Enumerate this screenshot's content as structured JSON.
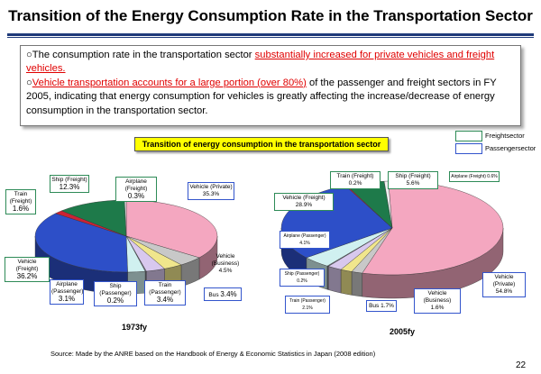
{
  "title": "Transition of the Energy Consumption Rate in the Transportation Sector",
  "bullets": [
    {
      "prefix": "The consumption rate in the transportation sector ",
      "emph": "substantially increased for private vehicles and freight vehicles.",
      "suffix": ""
    },
    {
      "prefix": "",
      "emph": "Vehicle transportation accounts for a large portion (over 80%)",
      "suffix": " of the passenger and freight sectors in FY 2005, indicating that energy consumption for vehicles is greatly affecting the increase/decrease of energy consumption in the transportation sector."
    }
  ],
  "bullet_symbol": "○",
  "chart_subtitle": "Transition of energy consumption in the transportation sector",
  "legend": {
    "freight": "Freightsector",
    "passenger": "Passengersector",
    "freight_color": "#2e8b57",
    "passenger_color": "#3355cc"
  },
  "chart_data": [
    {
      "type": "pie",
      "title": "1973fy",
      "slices": [
        {
          "label": "Vehicle (Private)",
          "value": 35.3,
          "sector": "passenger",
          "color": "#f4a7c0"
        },
        {
          "label": "Vehicle (Business)",
          "value": 4.5,
          "sector": "passenger",
          "color": "#c8c8c8"
        },
        {
          "label": "Bus",
          "value": 3.4,
          "sector": "passenger",
          "color": "#f0e68c"
        },
        {
          "label": "Train (Passenger)",
          "value": 3.4,
          "sector": "passenger",
          "color": "#d8c8ee"
        },
        {
          "label": "Ship (Passenger)",
          "value": 0.2,
          "sector": "passenger",
          "color": "#7a7a8a"
        },
        {
          "label": "Airplane (Passenger)",
          "value": 3.1,
          "sector": "passenger",
          "color": "#d0f0f0"
        },
        {
          "label": "Vehicle (Freight)",
          "value": 36.2,
          "sector": "freight",
          "color": "#2d4fc8"
        },
        {
          "label": "Train (Freight)",
          "value": 1.6,
          "sector": "freight",
          "color": "#cc2233"
        },
        {
          "label": "Ship (Freight)",
          "value": 12.3,
          "sector": "freight",
          "color": "#1e7a4a"
        },
        {
          "label": "Airplane (Freight)",
          "value": 0.3,
          "sector": "freight",
          "color": "#eeeeee"
        }
      ],
      "label_text": {
        "ship_freight": "Ship (Freight)",
        "ship_freight_v": "12.3%",
        "airplane_freight": "Airplane (Freight)",
        "airplane_freight_v": "0.3%",
        "vehicle_private": "Vehicle (Private)",
        "vehicle_private_v": "35.3%",
        "train_freight": "Train (Freight)",
        "train_freight_v": "1.6%",
        "vehicle_freight": "Vehicle (Freight)",
        "vehicle_freight_v": "36.2%",
        "airplane_passenger": "Airplane (Passenger)",
        "airplane_passenger_v": "3.1%",
        "ship_passenger": "Ship (Passenger)",
        "ship_passenger_v": "0.2%",
        "train_passenger": "Train (Passenger)",
        "train_passenger_v": "3.4%",
        "bus": "Bus",
        "bus_v": "3.4%",
        "vehicle_business": "Vehicle (Business)",
        "vehicle_business_v": "4.5%"
      }
    },
    {
      "type": "pie",
      "title": "2005fy",
      "slices": [
        {
          "label": "Vehicle (Private)",
          "value": 54.8,
          "sector": "passenger",
          "color": "#f4a7c0"
        },
        {
          "label": "Vehicle (Business)",
          "value": 1.6,
          "sector": "passenger",
          "color": "#c8c8c8"
        },
        {
          "label": "Bus",
          "value": 1.7,
          "sector": "passenger",
          "color": "#f0e68c"
        },
        {
          "label": "Train (Passenger)",
          "value": 2.1,
          "sector": "passenger",
          "color": "#d8c8ee"
        },
        {
          "label": "Ship (Passenger)",
          "value": 0.2,
          "sector": "passenger",
          "color": "#7a7a8a"
        },
        {
          "label": "Airplane (Passenger)",
          "value": 4.1,
          "sector": "passenger",
          "color": "#d0f0f0"
        },
        {
          "label": "Vehicle (Freight)",
          "value": 28.9,
          "sector": "freight",
          "color": "#2d4fc8"
        },
        {
          "label": "Train (Freight)",
          "value": 0.2,
          "sector": "freight",
          "color": "#cc2233"
        },
        {
          "label": "Ship (Freight)",
          "value": 5.6,
          "sector": "freight",
          "color": "#1e7a4a"
        },
        {
          "label": "Airplane (Freight)",
          "value": 0.6,
          "sector": "freight",
          "color": "#eeeeee"
        }
      ],
      "label_text": {
        "train_freight": "Train (Freight) 0.2%",
        "ship_freight": "Ship (Freight) 5.6%",
        "airplane_freight": "Airplane (Freight)  0.6%",
        "vehicle_freight": "Vehicle (Freight) 28.9%",
        "airplane_passenger": "Airplane (Passenger)",
        "airplane_passenger_v": "4.1%",
        "ship_passenger": "Ship (Passenger)  0.2%",
        "train_passenger": "Train (Passenger)  2.1%",
        "bus": "Bus",
        "bus_v": "1.7%",
        "vehicle_business": "Vehicle (Business)",
        "vehicle_business_v": "1.6%",
        "vehicle_private": "Vehicle (Private)",
        "vehicle_private_v": "54.8%"
      }
    }
  ],
  "source": "Source: Made by the ANRE based on the Handbook of Energy & Economic Statistics in Japan (2008 edition)",
  "page_number": "22"
}
